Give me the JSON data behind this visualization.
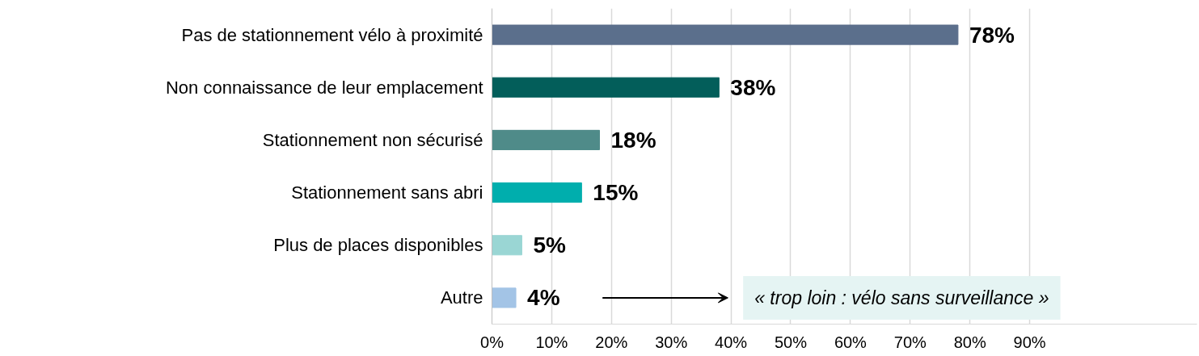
{
  "chart_data": {
    "type": "bar",
    "orientation": "horizontal",
    "categories": [
      "Pas de stationnement vélo à proximité",
      "Non connaissance de leur emplacement",
      "Stationnement non sécurisé",
      "Stationnement sans abri",
      "Plus de places disponibles",
      "Autre"
    ],
    "values": [
      78,
      38,
      18,
      15,
      5,
      4
    ],
    "colors": [
      "#5b6f8c",
      "#035e5a",
      "#4f8b89",
      "#00aead",
      "#9ad6d4",
      "#a3c4e6"
    ],
    "value_labels": [
      "78%",
      "38%",
      "18%",
      "15%",
      "5%",
      "4%"
    ],
    "xlim": [
      0,
      118
    ],
    "xticks": [
      {
        "value": 0,
        "label": "0%"
      },
      {
        "value": 10,
        "label": "10%"
      },
      {
        "value": 20,
        "label": "20%"
      },
      {
        "value": 30,
        "label": "30%"
      },
      {
        "value": 40,
        "label": "40%"
      },
      {
        "value": 50,
        "label": "50%"
      },
      {
        "value": 60,
        "label": "60%"
      },
      {
        "value": 70,
        "label": "70%"
      },
      {
        "value": 80,
        "label": "80%"
      },
      {
        "value": 90,
        "label": "90%"
      }
    ],
    "grid": "x",
    "annotations": [
      "« trop loin : vélo sans surveillance »"
    ]
  }
}
